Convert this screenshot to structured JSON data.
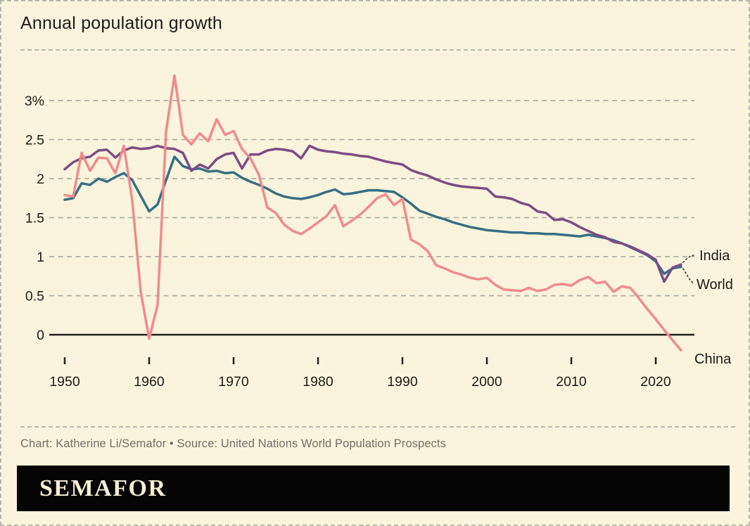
{
  "page": {
    "background": "#faf4dc",
    "border_color": "#b7b7ac"
  },
  "header": {
    "title": "Annual population growth"
  },
  "chart_data": {
    "type": "line",
    "title": "Annual population growth",
    "unit": "percent",
    "grid": "horizontal-dashed",
    "legend_position": "right-inline",
    "xlim": [
      1950,
      2023
    ],
    "ylim": [
      -0.3,
      3.45
    ],
    "x": [
      1950,
      1951,
      1952,
      1953,
      1954,
      1955,
      1956,
      1957,
      1958,
      1959,
      1960,
      1961,
      1962,
      1963,
      1964,
      1965,
      1966,
      1967,
      1968,
      1969,
      1970,
      1971,
      1972,
      1973,
      1974,
      1975,
      1976,
      1977,
      1978,
      1979,
      1980,
      1981,
      1982,
      1983,
      1984,
      1985,
      1986,
      1987,
      1988,
      1989,
      1990,
      1991,
      1992,
      1993,
      1994,
      1995,
      1996,
      1997,
      1998,
      1999,
      2000,
      2001,
      2002,
      2003,
      2004,
      2005,
      2006,
      2007,
      2008,
      2009,
      2010,
      2011,
      2012,
      2013,
      2014,
      2015,
      2016,
      2017,
      2018,
      2019,
      2020,
      2021,
      2022,
      2023
    ],
    "y_ticks": [
      {
        "value": 3,
        "label": "3%"
      },
      {
        "value": 2.5,
        "label": "2.5"
      },
      {
        "value": 2,
        "label": "2"
      },
      {
        "value": 1.5,
        "label": "1.5"
      },
      {
        "value": 1,
        "label": "1"
      },
      {
        "value": 0.5,
        "label": "0.5"
      },
      {
        "value": 0,
        "label": "0"
      }
    ],
    "x_ticks": [
      {
        "value": 1950,
        "label": "1950"
      },
      {
        "value": 1960,
        "label": "1960"
      },
      {
        "value": 1970,
        "label": "1970"
      },
      {
        "value": 1980,
        "label": "1980"
      },
      {
        "value": 1990,
        "label": "1990"
      },
      {
        "value": 2000,
        "label": "2000"
      },
      {
        "value": 2010,
        "label": "2010"
      },
      {
        "value": 2020,
        "label": "2020"
      }
    ],
    "series": [
      {
        "name": "India",
        "color": "#7d4b85",
        "label_color": "#84518d",
        "values": [
          2.12,
          2.21,
          2.26,
          2.28,
          2.36,
          2.37,
          2.27,
          2.36,
          2.4,
          2.38,
          2.39,
          2.42,
          2.39,
          2.38,
          2.33,
          2.1,
          2.18,
          2.13,
          2.25,
          2.31,
          2.33,
          2.13,
          2.31,
          2.31,
          2.36,
          2.38,
          2.37,
          2.35,
          2.26,
          2.42,
          2.37,
          2.35,
          2.34,
          2.32,
          2.31,
          2.29,
          2.28,
          2.25,
          2.22,
          2.2,
          2.18,
          2.11,
          2.07,
          2.04,
          1.99,
          1.95,
          1.92,
          1.9,
          1.89,
          1.88,
          1.87,
          1.77,
          1.76,
          1.74,
          1.69,
          1.66,
          1.58,
          1.56,
          1.47,
          1.48,
          1.44,
          1.38,
          1.33,
          1.28,
          1.25,
          1.19,
          1.17,
          1.13,
          1.08,
          1.03,
          0.96,
          0.68,
          0.86,
          0.9
        ]
      },
      {
        "name": "World",
        "color": "#366f85",
        "label_color": "#2e7089",
        "values": [
          1.73,
          1.75,
          1.94,
          1.92,
          2.0,
          1.96,
          2.02,
          2.07,
          1.98,
          1.78,
          1.58,
          1.67,
          1.98,
          2.28,
          2.16,
          2.12,
          2.13,
          2.09,
          2.1,
          2.07,
          2.08,
          2.01,
          1.96,
          1.92,
          1.87,
          1.81,
          1.77,
          1.75,
          1.74,
          1.76,
          1.79,
          1.83,
          1.86,
          1.8,
          1.81,
          1.83,
          1.85,
          1.85,
          1.84,
          1.83,
          1.76,
          1.68,
          1.59,
          1.55,
          1.51,
          1.48,
          1.44,
          1.41,
          1.38,
          1.36,
          1.34,
          1.33,
          1.32,
          1.31,
          1.31,
          1.3,
          1.3,
          1.29,
          1.29,
          1.28,
          1.27,
          1.26,
          1.28,
          1.26,
          1.24,
          1.21,
          1.17,
          1.12,
          1.07,
          1.02,
          0.94,
          0.78,
          0.85,
          0.87
        ]
      },
      {
        "name": "China",
        "color": "#f18a8b",
        "label_color": "#d2666c",
        "values": [
          1.79,
          1.77,
          2.33,
          2.1,
          2.27,
          2.26,
          2.07,
          2.42,
          1.72,
          0.55,
          -0.05,
          0.38,
          2.6,
          3.32,
          2.56,
          2.44,
          2.58,
          2.48,
          2.76,
          2.56,
          2.61,
          2.38,
          2.26,
          2.05,
          1.63,
          1.56,
          1.41,
          1.33,
          1.29,
          1.36,
          1.44,
          1.52,
          1.66,
          1.39,
          1.46,
          1.54,
          1.64,
          1.75,
          1.8,
          1.66,
          1.74,
          1.22,
          1.16,
          1.07,
          0.89,
          0.85,
          0.8,
          0.77,
          0.73,
          0.71,
          0.73,
          0.64,
          0.58,
          0.57,
          0.56,
          0.6,
          0.56,
          0.58,
          0.64,
          0.65,
          0.63,
          0.7,
          0.74,
          0.66,
          0.68,
          0.55,
          0.62,
          0.6,
          0.47,
          0.33,
          0.2,
          0.06,
          -0.07,
          -0.2
        ]
      }
    ],
    "style": {
      "gridline_color": "#b0b0a5",
      "axis_color": "#1e1e1c",
      "tick_color": "#1e1e1c"
    }
  },
  "footer": {
    "caption": "Chart: Katherine Li/Semafor • Source: United Nations World Population Prospects"
  },
  "logo": {
    "text": "SEMAFOR",
    "bar_color": "#050505",
    "text_color": "#f6efd5"
  }
}
